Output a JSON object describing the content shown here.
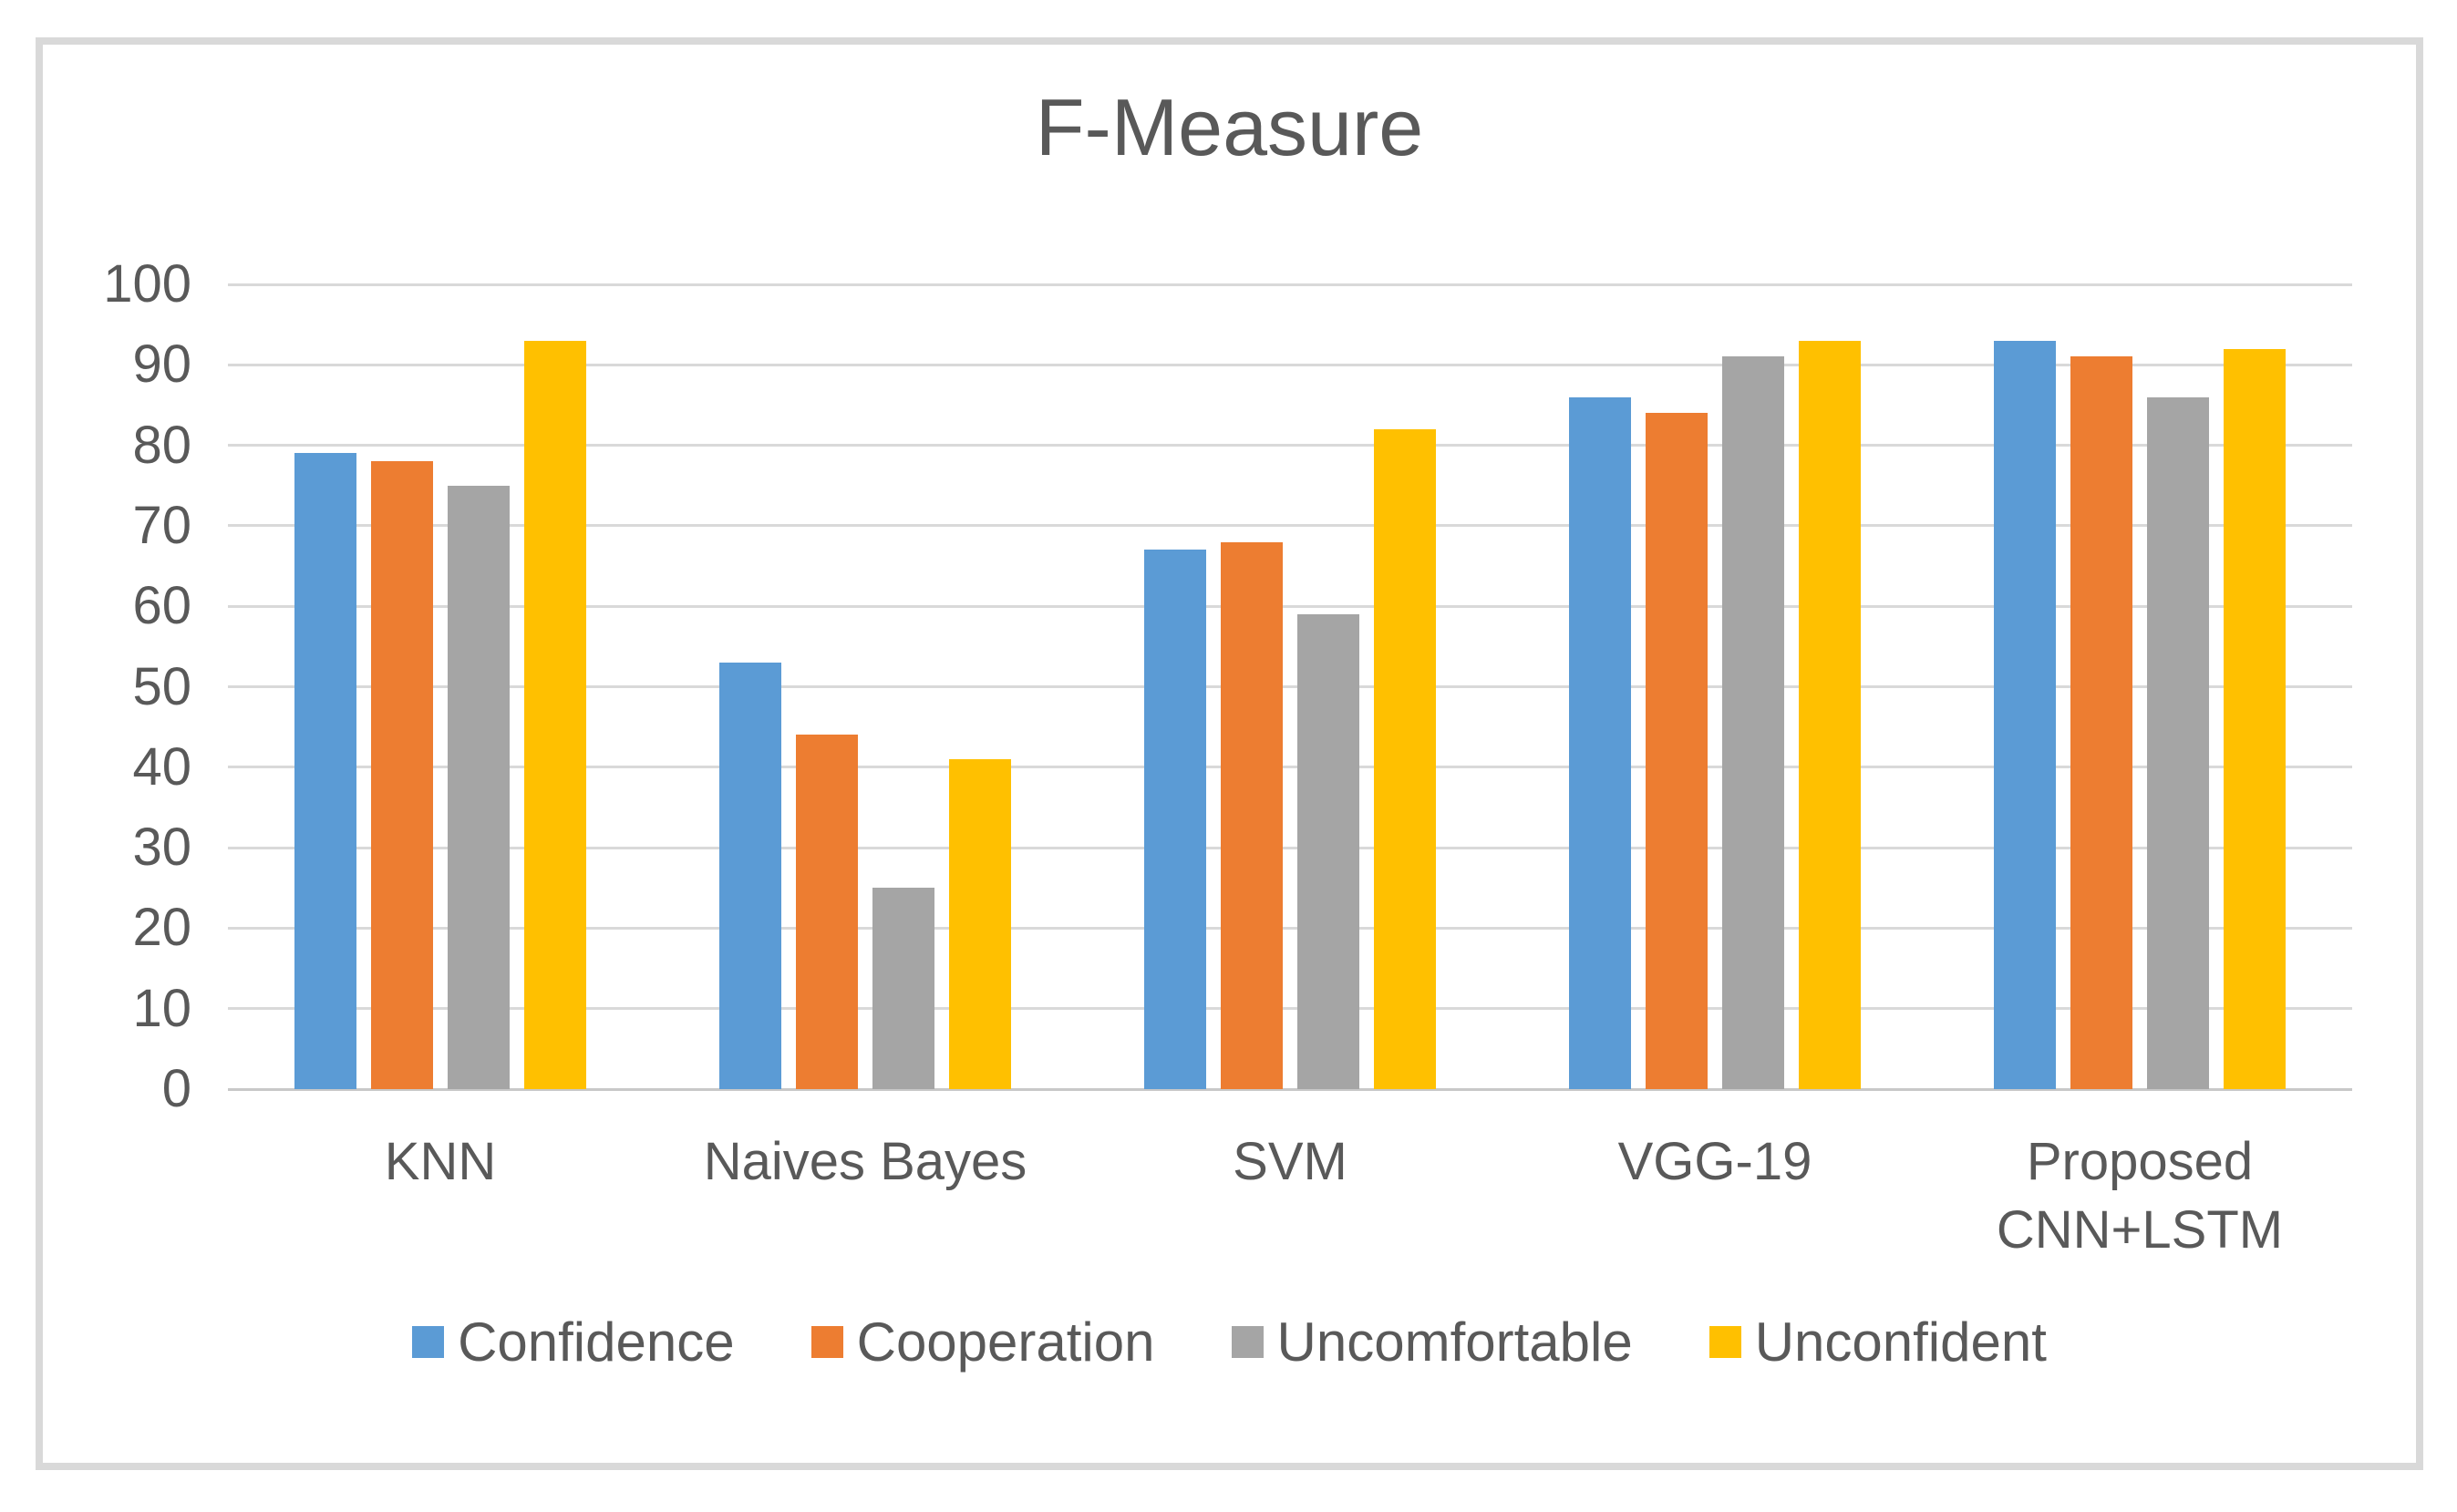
{
  "chart_data": {
    "type": "bar",
    "title": "F-Measure",
    "categories": [
      "KNN",
      "Naives Bayes",
      "SVM",
      "VGG-19",
      "Proposed CNN+LSTM"
    ],
    "series": [
      {
        "name": "Confidence",
        "color": "#5B9BD5",
        "values": [
          79,
          53,
          67,
          86,
          93
        ]
      },
      {
        "name": "Cooperation",
        "color": "#ED7D31",
        "values": [
          78,
          44,
          68,
          84,
          91
        ]
      },
      {
        "name": "Uncomfortable",
        "color": "#A5A5A5",
        "values": [
          75,
          25,
          59,
          91,
          86
        ]
      },
      {
        "name": "Unconfident",
        "color": "#FFC000",
        "values": [
          93,
          41,
          82,
          93,
          92
        ]
      }
    ],
    "xlabel": "",
    "ylabel": "",
    "ylim": [
      0,
      100
    ],
    "y_ticks": [
      0,
      10,
      20,
      30,
      40,
      50,
      60,
      70,
      80,
      90,
      100
    ],
    "grid": true,
    "legend_position": "bottom"
  },
  "colors": {
    "text": "#595959",
    "gridline": "#D9D9D9",
    "axis_line": "#C8C8C8",
    "frame_border": "#D9D9D9",
    "background": "#FFFFFF"
  }
}
